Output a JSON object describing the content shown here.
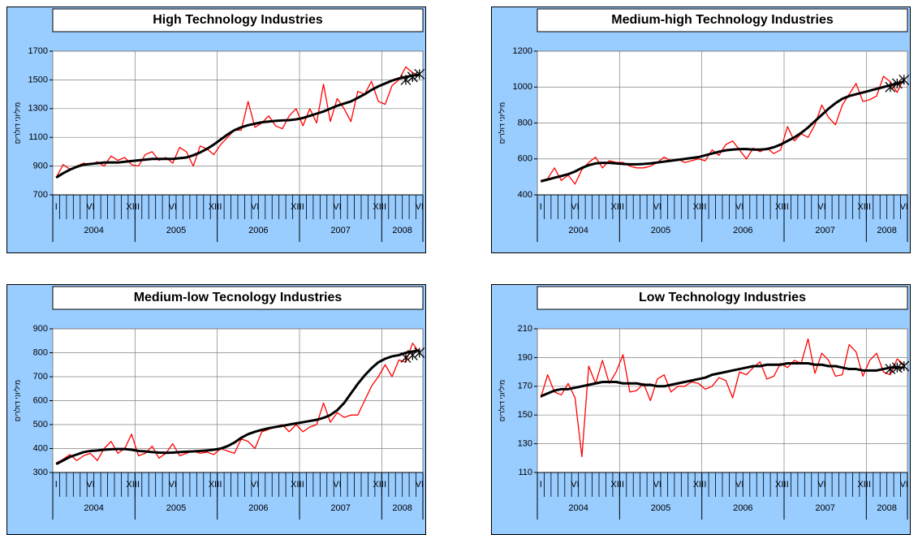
{
  "chart_data": [
    {
      "type": "line",
      "title": "High Technology Industries",
      "y_label": "מיליוני דולרים",
      "categories": [
        "I",
        null,
        null,
        null,
        null,
        "VI",
        null,
        null,
        null,
        null,
        null,
        "XII",
        "I",
        null,
        null,
        null,
        null,
        "VI",
        null,
        null,
        null,
        null,
        null,
        "XII",
        "I",
        null,
        null,
        null,
        null,
        "VI",
        null,
        null,
        null,
        null,
        null,
        "XII",
        "I",
        null,
        null,
        null,
        null,
        "VI",
        null,
        null,
        null,
        null,
        null,
        "XII",
        "I",
        null,
        null,
        null,
        null,
        "VI"
      ],
      "years": [
        "2004",
        "2005",
        "2006",
        "2007",
        "2008"
      ],
      "ylim": [
        700,
        1700
      ],
      "yticks": [
        700,
        900,
        1100,
        1300,
        1500,
        1700
      ],
      "grid": true,
      "series": [
        {
          "color": "#ff0000",
          "values": [
            820,
            910,
            880,
            900,
            920,
            910,
            930,
            900,
            970,
            940,
            960,
            910,
            900,
            980,
            1000,
            940,
            960,
            920,
            1030,
            1000,
            900,
            1040,
            1020,
            980,
            1050,
            1100,
            1150,
            1150,
            1350,
            1170,
            1200,
            1250,
            1180,
            1160,
            1250,
            1300,
            1180,
            1300,
            1200,
            1470,
            1210,
            1370,
            1300,
            1210,
            1420,
            1400,
            1490,
            1350,
            1330,
            1460,
            1500,
            1590,
            1550,
            1530
          ]
        },
        {
          "color": "#000000",
          "values": [
            820,
            850,
            875,
            895,
            910,
            915,
            920,
            925,
            925,
            925,
            930,
            935,
            940,
            945,
            950,
            950,
            950,
            950,
            955,
            960,
            975,
            995,
            1020,
            1050,
            1085,
            1120,
            1150,
            1170,
            1185,
            1195,
            1205,
            1210,
            1215,
            1218,
            1220,
            1225,
            1235,
            1250,
            1265,
            1280,
            1300,
            1320,
            1335,
            1350,
            1375,
            1400,
            1430,
            1455,
            1475,
            1495,
            1510,
            1520,
            1530,
            1535
          ]
        },
        {
          "color": "#000000",
          "marker": "x",
          "values": [
            null,
            null,
            null,
            null,
            null,
            null,
            null,
            null,
            null,
            null,
            null,
            null,
            null,
            null,
            null,
            null,
            null,
            null,
            null,
            null,
            null,
            null,
            null,
            null,
            null,
            null,
            null,
            null,
            null,
            null,
            null,
            null,
            null,
            null,
            null,
            null,
            null,
            null,
            null,
            null,
            null,
            null,
            null,
            null,
            null,
            null,
            null,
            null,
            null,
            null,
            null,
            1500,
            1520,
            1540
          ]
        }
      ]
    },
    {
      "type": "line",
      "title": "Medium-high Technology Industries",
      "y_label": "מיליוני דולרים",
      "categories": [
        "I",
        null,
        null,
        null,
        null,
        "VI",
        null,
        null,
        null,
        null,
        null,
        "XII",
        "I",
        null,
        null,
        null,
        null,
        "VI",
        null,
        null,
        null,
        null,
        null,
        "XII",
        "I",
        null,
        null,
        null,
        null,
        "VI",
        null,
        null,
        null,
        null,
        null,
        "XII",
        "I",
        null,
        null,
        null,
        null,
        "VI",
        null,
        null,
        null,
        null,
        null,
        "XII",
        "I",
        null,
        null,
        null,
        null,
        "VI"
      ],
      "years": [
        "2004",
        "2005",
        "2006",
        "2007",
        "2008"
      ],
      "ylim": [
        400,
        1200
      ],
      "yticks": [
        400,
        600,
        800,
        1000,
        1200
      ],
      "grid": true,
      "series": [
        {
          "color": "#ff0000",
          "values": [
            480,
            490,
            550,
            480,
            510,
            460,
            540,
            580,
            610,
            550,
            590,
            580,
            580,
            560,
            550,
            550,
            560,
            580,
            610,
            590,
            600,
            580,
            590,
            600,
            590,
            650,
            620,
            680,
            700,
            650,
            600,
            660,
            640,
            660,
            630,
            650,
            780,
            700,
            740,
            720,
            790,
            900,
            830,
            790,
            900,
            960,
            1020,
            920,
            930,
            950,
            1060,
            1030,
            970,
            1050
          ]
        },
        {
          "color": "#000000",
          "values": [
            475,
            485,
            495,
            505,
            515,
            530,
            550,
            565,
            575,
            578,
            578,
            575,
            572,
            570,
            570,
            572,
            575,
            580,
            585,
            590,
            595,
            600,
            605,
            610,
            620,
            630,
            640,
            648,
            652,
            655,
            655,
            652,
            652,
            655,
            665,
            680,
            700,
            720,
            745,
            775,
            810,
            845,
            880,
            910,
            935,
            950,
            960,
            970,
            980,
            990,
            1000,
            1010,
            1020,
            1030
          ]
        },
        {
          "color": "#000000",
          "marker": "x",
          "values": [
            null,
            null,
            null,
            null,
            null,
            null,
            null,
            null,
            null,
            null,
            null,
            null,
            null,
            null,
            null,
            null,
            null,
            null,
            null,
            null,
            null,
            null,
            null,
            null,
            null,
            null,
            null,
            null,
            null,
            null,
            null,
            null,
            null,
            null,
            null,
            null,
            null,
            null,
            null,
            null,
            null,
            null,
            null,
            null,
            null,
            null,
            null,
            null,
            null,
            null,
            null,
            1000,
            1020,
            1040
          ]
        }
      ]
    },
    {
      "type": "line",
      "title": "Medium-low Tecnology Industries",
      "y_label": "מיליוני דולרים",
      "categories": [
        "I",
        null,
        null,
        null,
        null,
        "VI",
        null,
        null,
        null,
        null,
        null,
        "XII",
        "I",
        null,
        null,
        null,
        null,
        "VI",
        null,
        null,
        null,
        null,
        null,
        "XII",
        "I",
        null,
        null,
        null,
        null,
        "VI",
        null,
        null,
        null,
        null,
        null,
        "XII",
        "I",
        null,
        null,
        null,
        null,
        "VI",
        null,
        null,
        null,
        null,
        null,
        "XII",
        "I",
        null,
        null,
        null,
        null,
        "VI"
      ],
      "years": [
        "2004",
        "2005",
        "2006",
        "2007",
        "2008"
      ],
      "ylim": [
        300,
        900
      ],
      "yticks": [
        300,
        400,
        500,
        600,
        700,
        800,
        900
      ],
      "grid": true,
      "series": [
        {
          "color": "#ff0000",
          "values": [
            340,
            355,
            375,
            350,
            370,
            380,
            350,
            400,
            430,
            380,
            400,
            460,
            370,
            380,
            410,
            360,
            380,
            420,
            370,
            380,
            390,
            380,
            385,
            375,
            400,
            390,
            380,
            440,
            430,
            400,
            470,
            480,
            490,
            500,
            470,
            500,
            470,
            490,
            500,
            590,
            510,
            550,
            530,
            540,
            540,
            600,
            660,
            700,
            750,
            700,
            770,
            760,
            840,
            800
          ]
        },
        {
          "color": "#000000",
          "values": [
            335,
            350,
            365,
            375,
            385,
            390,
            392,
            395,
            397,
            398,
            398,
            395,
            390,
            388,
            385,
            383,
            382,
            383,
            385,
            387,
            388,
            390,
            392,
            395,
            400,
            410,
            425,
            445,
            460,
            470,
            478,
            485,
            490,
            495,
            500,
            505,
            510,
            515,
            520,
            528,
            540,
            560,
            590,
            630,
            670,
            705,
            735,
            760,
            775,
            785,
            790,
            800,
            805,
            810
          ]
        },
        {
          "color": "#000000",
          "marker": "x",
          "values": [
            null,
            null,
            null,
            null,
            null,
            null,
            null,
            null,
            null,
            null,
            null,
            null,
            null,
            null,
            null,
            null,
            null,
            null,
            null,
            null,
            null,
            null,
            null,
            null,
            null,
            null,
            null,
            null,
            null,
            null,
            null,
            null,
            null,
            null,
            null,
            null,
            null,
            null,
            null,
            null,
            null,
            null,
            null,
            null,
            null,
            null,
            null,
            null,
            null,
            null,
            null,
            780,
            790,
            800
          ]
        }
      ]
    },
    {
      "type": "line",
      "title": "Low Technology Industries",
      "y_label": "מיליוני דולרים",
      "categories": [
        "I",
        null,
        null,
        null,
        null,
        "VI",
        null,
        null,
        null,
        null,
        null,
        "XII",
        "I",
        null,
        null,
        null,
        null,
        "VI",
        null,
        null,
        null,
        null,
        null,
        "XII",
        "I",
        null,
        null,
        null,
        null,
        "VI",
        null,
        null,
        null,
        null,
        null,
        "XII",
        "I",
        null,
        null,
        null,
        null,
        "VI",
        null,
        null,
        null,
        null,
        null,
        "XII",
        "I",
        null,
        null,
        null,
        null,
        "VI"
      ],
      "years": [
        "2004",
        "2005",
        "2006",
        "2007",
        "2008"
      ],
      "ylim": [
        110,
        210
      ],
      "yticks": [
        110,
        130,
        150,
        170,
        190,
        210
      ],
      "grid": true,
      "series": [
        {
          "color": "#ff0000",
          "values": [
            162,
            178,
            166,
            164,
            172,
            162,
            121,
            184,
            172,
            188,
            172,
            180,
            192,
            166,
            167,
            172,
            160,
            175,
            178,
            166,
            170,
            170,
            173,
            172,
            168,
            170,
            176,
            174,
            162,
            180,
            178,
            183,
            187,
            175,
            177,
            186,
            183,
            188,
            186,
            203,
            179,
            193,
            188,
            177,
            178,
            199,
            194,
            177,
            188,
            193,
            180,
            178,
            189,
            185
          ]
        },
        {
          "color": "#000000",
          "values": [
            163,
            165,
            167,
            168,
            168,
            169,
            170,
            171,
            172,
            173,
            173,
            173,
            172,
            172,
            172,
            171,
            171,
            170,
            170,
            171,
            172,
            173,
            174,
            175,
            176,
            178,
            179,
            180,
            181,
            182,
            183,
            184,
            184,
            185,
            185,
            185,
            186,
            186,
            186,
            186,
            185,
            185,
            184,
            184,
            183,
            182,
            182,
            181,
            181,
            181,
            182,
            183,
            183,
            183
          ]
        },
        {
          "color": "#000000",
          "marker": "x",
          "values": [
            null,
            null,
            null,
            null,
            null,
            null,
            null,
            null,
            null,
            null,
            null,
            null,
            null,
            null,
            null,
            null,
            null,
            null,
            null,
            null,
            null,
            null,
            null,
            null,
            null,
            null,
            null,
            null,
            null,
            null,
            null,
            null,
            null,
            null,
            null,
            null,
            null,
            null,
            null,
            null,
            null,
            null,
            null,
            null,
            null,
            null,
            null,
            null,
            null,
            null,
            null,
            182,
            183,
            184
          ]
        }
      ]
    }
  ]
}
